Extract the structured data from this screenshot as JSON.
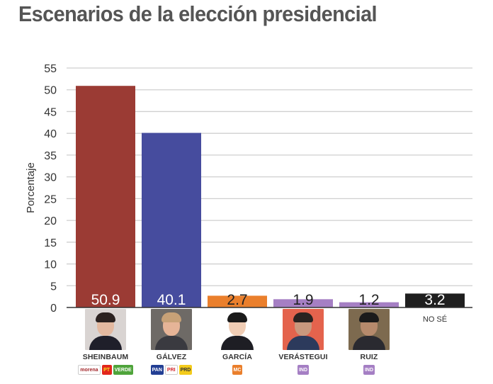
{
  "title": "Escenarios de la elección presidencial",
  "chart_data": {
    "type": "bar",
    "title": "Escenarios de la elección presidencial",
    "xlabel": "",
    "ylabel": "Porcentaje",
    "ylim": [
      0,
      55
    ],
    "yticks": [
      0,
      5,
      10,
      15,
      20,
      25,
      30,
      35,
      40,
      45,
      50,
      55
    ],
    "grid": true,
    "categories": [
      "SHEINBAUM",
      "GÁLVEZ",
      "GARCÍA",
      "VERÁSTEGUI",
      "RUIZ",
      "NO SÉ"
    ],
    "values": [
      50.9,
      40.1,
      2.7,
      1.9,
      1.2,
      3.2
    ],
    "data_labels": [
      "50.9",
      "40.1",
      "2.7",
      "1.9",
      "1.2",
      "3.2"
    ],
    "colors": [
      "#9b3b34",
      "#464c9e",
      "#ea7f2c",
      "#a57fc4",
      "#a57fc4",
      "#1f1f1f"
    ],
    "label_colors": [
      "#ffffff",
      "#ffffff",
      "#222222",
      "#222222",
      "#222222",
      "#ffffff"
    ]
  },
  "candidates": [
    {
      "name": "SHEINBAUM",
      "parties": [
        {
          "label": "morena",
          "color": "#ffffff",
          "text": "#a3262a"
        },
        {
          "label": "PT",
          "color": "#e2261c",
          "text": "#f7e21b"
        },
        {
          "label": "VERDE",
          "color": "#4fa43b",
          "text": "#ffffff"
        }
      ]
    },
    {
      "name": "GÁLVEZ",
      "parties": [
        {
          "label": "PAN",
          "color": "#233f94",
          "text": "#ffffff"
        },
        {
          "label": "PRI",
          "color": "#ffffff",
          "text": "#d3272e"
        },
        {
          "label": "PRD",
          "color": "#f3cb1c",
          "text": "#333333"
        }
      ]
    },
    {
      "name": "GARCÍA",
      "parties": [
        {
          "label": "MC",
          "color": "#ea7f2c",
          "text": "#ffffff"
        }
      ]
    },
    {
      "name": "VERÁSTEGUI",
      "parties": [
        {
          "label": "IND",
          "color": "#a57fc4",
          "text": "#ffffff"
        }
      ]
    },
    {
      "name": "RUIZ",
      "parties": [
        {
          "label": "IND",
          "color": "#a57fc4",
          "text": "#ffffff"
        }
      ]
    }
  ],
  "no_se_label": "NO SÉ"
}
